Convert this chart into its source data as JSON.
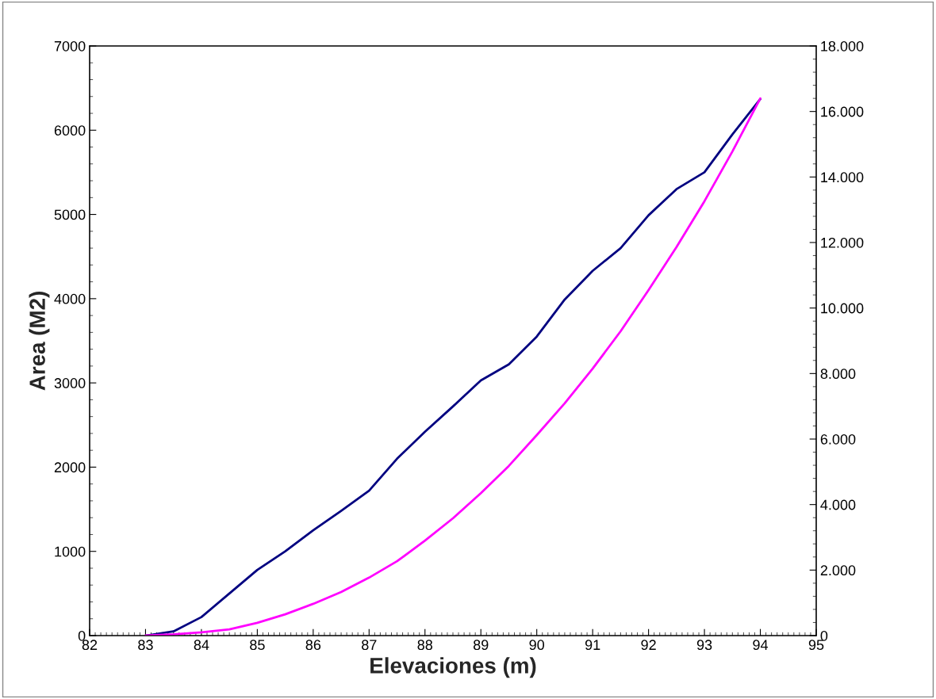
{
  "chart_data": {
    "type": "line",
    "xlabel": "Elevaciones (m)",
    "ylabel": "Area (M2)",
    "x": [
      83,
      83.5,
      84,
      84.5,
      85,
      85.5,
      86,
      86.5,
      87,
      87.5,
      88,
      88.5,
      89,
      89.5,
      90,
      90.5,
      91,
      91.5,
      92,
      92.5,
      93,
      93.5,
      94
    ],
    "series": [
      {
        "color": "#000080",
        "values": [
          0,
          50,
          220,
          500,
          780,
          1000,
          1250,
          1480,
          1720,
          2100,
          2420,
          2720,
          3030,
          3220,
          3550,
          3990,
          4330,
          4600,
          4990,
          5300,
          5500,
          5950,
          6370
        ]
      },
      {
        "color": "#ff00ff",
        "axis": "y2",
        "values": [
          0,
          40,
          100,
          190,
          390,
          650,
          970,
          1330,
          1770,
          2270,
          2900,
          3580,
          4350,
          5180,
          6120,
          7090,
          8150,
          9290,
          10550,
          11860,
          13260,
          14780,
          16400
        ]
      }
    ],
    "xlim": [
      82,
      95
    ],
    "xticks": [
      82,
      83,
      84,
      85,
      86,
      87,
      88,
      89,
      90,
      91,
      92,
      93,
      94,
      95
    ],
    "ylim": [
      0,
      7000
    ],
    "yticks": [
      0,
      1000,
      2000,
      3000,
      4000,
      5000,
      6000,
      7000
    ],
    "y2lim": [
      0,
      18000
    ],
    "y2ticks": [
      0,
      {
        "value": 2000,
        "label": "2.000"
      },
      {
        "value": 4000,
        "label": "4.000"
      },
      {
        "value": 6000,
        "label": "6.000"
      },
      {
        "value": 8000,
        "label": "8.000"
      },
      {
        "value": 10000,
        "label": "10.000"
      },
      {
        "value": 12000,
        "label": "12.000"
      },
      {
        "value": 14000,
        "label": "14.000"
      },
      {
        "value": 16000,
        "label": "16.000"
      },
      {
        "value": 18000,
        "label": "18.000"
      }
    ],
    "grid": false,
    "marker": "none",
    "line_style": "solid"
  }
}
